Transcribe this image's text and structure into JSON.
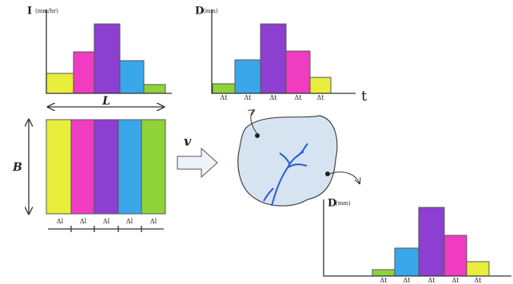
{
  "rainfall_chart": {
    "y_symbol": "I",
    "y_unit": "(mm/hr)"
  },
  "depth_chart_top": {
    "y_symbol": "D",
    "y_unit": "(mm)",
    "x_ticks": [
      "Δt",
      "Δt",
      "Δt",
      "Δt",
      "Δt"
    ],
    "x_label": "t"
  },
  "catchment_strips": {
    "width_label": "L",
    "height_label": "B",
    "strip_labels": [
      "Δl",
      "Δl",
      "Δl",
      "Δl",
      "Δl"
    ]
  },
  "velocity_label": "v",
  "depth_chart_bottom": {
    "y_symbol": "D",
    "y_unit": "(mm)",
    "x_ticks": [
      "Δt",
      "Δt",
      "Δt",
      "Δt",
      "Δt"
    ]
  }
}
